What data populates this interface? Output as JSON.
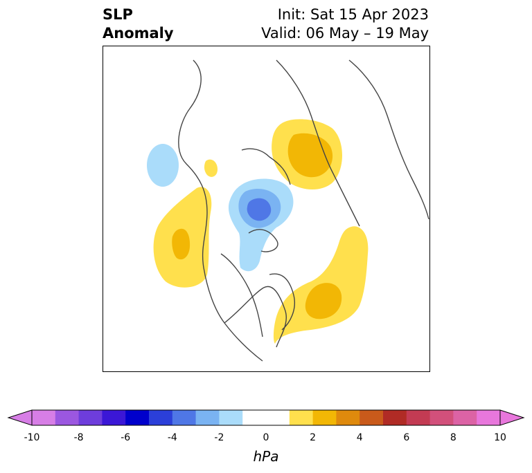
{
  "title": {
    "line1": "SLP",
    "line2": "Anomaly",
    "init": "Init: Sat 15 Apr 2023",
    "valid": "Valid: 06 May – 19 May"
  },
  "colorbar": {
    "unit": "hPa",
    "ticks": [
      "-10",
      "-8",
      "-6",
      "-4",
      "-2",
      "0",
      "2",
      "4",
      "6",
      "8",
      "10"
    ],
    "colors": [
      "#d77ee6",
      "#9b57e0",
      "#6e3ddc",
      "#3b17d6",
      "#0000cc",
      "#2b3fd9",
      "#4f77e6",
      "#7ab3f2",
      "#aadcfa",
      "#ffffff",
      "#ffffff",
      "#ffe04d",
      "#f2b705",
      "#df8a0d",
      "#c95a1b",
      "#b02b25",
      "#c33b53",
      "#d2507b",
      "#dc63a5",
      "#e877dc"
    ],
    "extend": "both"
  },
  "map": {
    "projection": "north-polar-stereographic",
    "features": [
      {
        "name": "anomaly-positive-eurasia",
        "sign": "positive"
      },
      {
        "name": "anomaly-negative-arctic",
        "sign": "negative"
      },
      {
        "name": "anomaly-positive-north-pacific",
        "sign": "positive"
      },
      {
        "name": "anomaly-positive-north-atlantic",
        "sign": "positive"
      },
      {
        "name": "anomaly-negative-bering",
        "sign": "negative"
      }
    ]
  }
}
